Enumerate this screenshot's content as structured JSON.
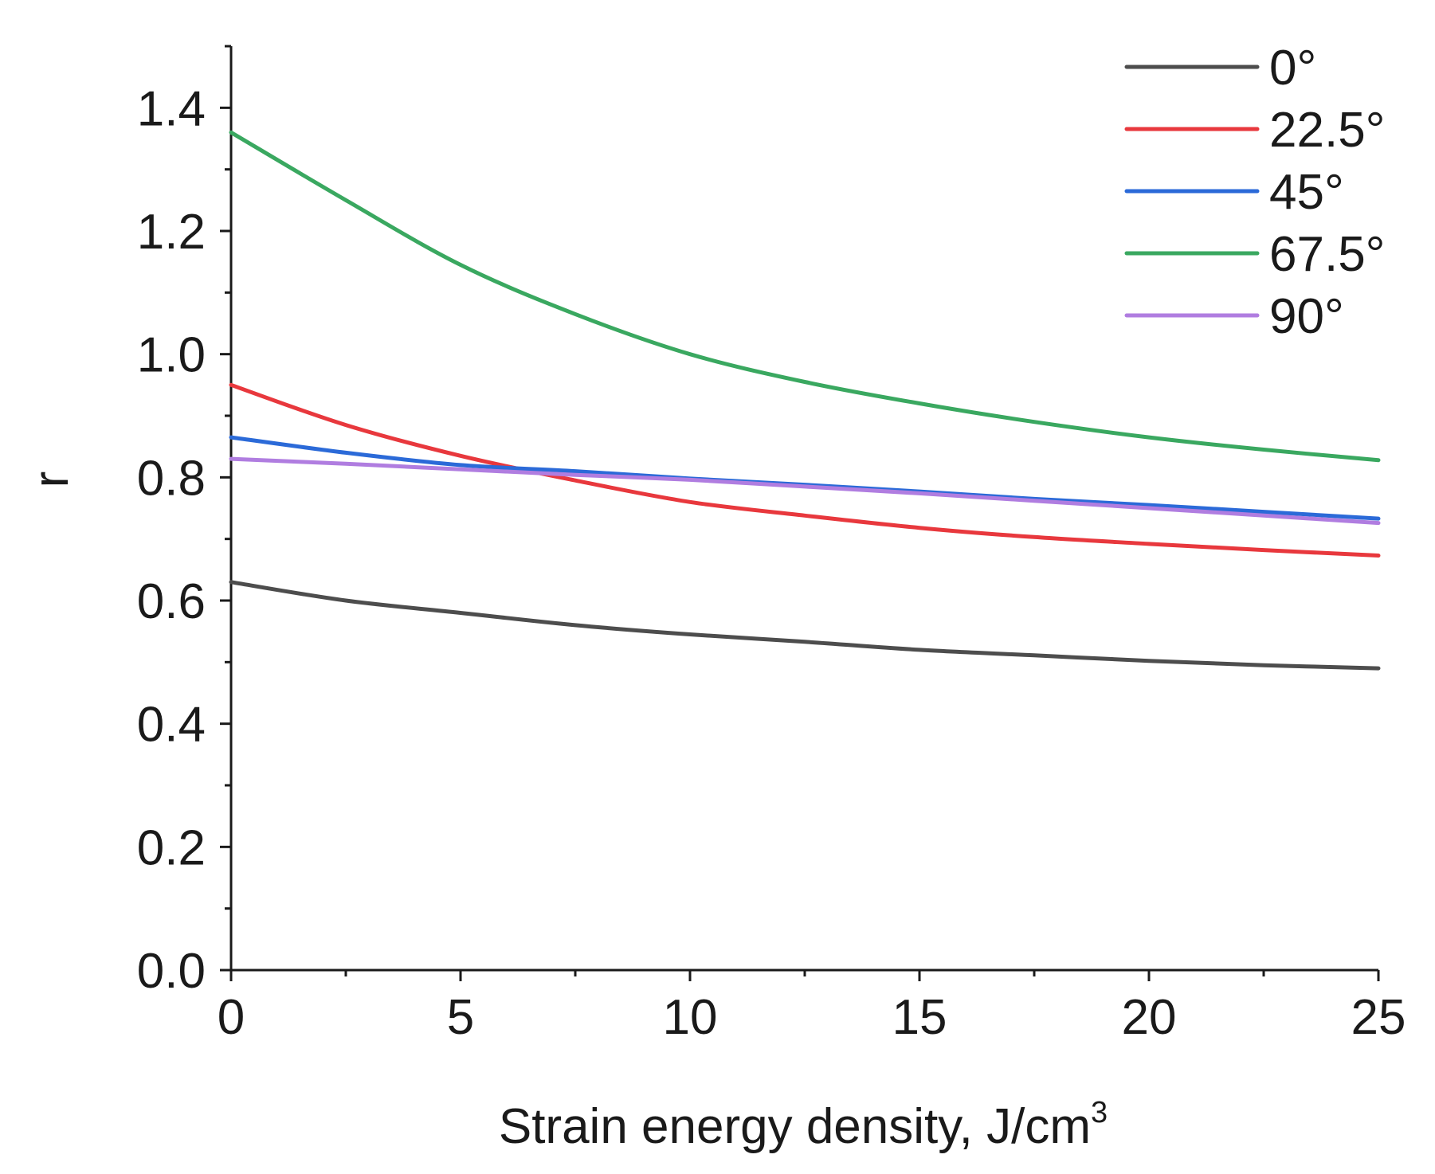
{
  "chart_data": {
    "type": "line",
    "title": "",
    "xlabel": "Strain energy density, J/cm",
    "xlabel_superscript": "3",
    "ylabel": "r",
    "xlim": [
      0,
      25
    ],
    "ylim": [
      0,
      1.5
    ],
    "x_ticks": [
      "0",
      "5",
      "10",
      "15",
      "20",
      "25"
    ],
    "y_ticks": [
      "0.0",
      "0.2",
      "0.4",
      "0.6",
      "0.8",
      "1.0",
      "1.2",
      "1.4"
    ],
    "legend_position": "top-right",
    "x": [
      0,
      2.5,
      5,
      7.5,
      10,
      12.5,
      15,
      17.5,
      20,
      22.5,
      25
    ],
    "series": [
      {
        "name": "0°",
        "color": "#4d4d4d",
        "values": [
          0.63,
          0.6,
          0.58,
          0.56,
          0.545,
          0.533,
          0.52,
          0.511,
          0.502,
          0.495,
          0.49
        ]
      },
      {
        "name": "22.5°",
        "color": "#e8383d",
        "values": [
          0.95,
          0.885,
          0.835,
          0.795,
          0.76,
          0.738,
          0.718,
          0.703,
          0.692,
          0.682,
          0.673
        ]
      },
      {
        "name": "45°",
        "color": "#2b6ad8",
        "values": [
          0.865,
          0.84,
          0.82,
          0.81,
          0.798,
          0.788,
          0.777,
          0.765,
          0.755,
          0.744,
          0.733
        ]
      },
      {
        "name": "67.5°",
        "color": "#3aa860",
        "values": [
          1.36,
          1.25,
          1.145,
          1.065,
          1.0,
          0.955,
          0.92,
          0.89,
          0.865,
          0.845,
          0.828
        ]
      },
      {
        "name": "90°",
        "color": "#b07de0",
        "values": [
          0.83,
          0.822,
          0.813,
          0.804,
          0.796,
          0.785,
          0.774,
          0.762,
          0.75,
          0.738,
          0.726
        ]
      }
    ]
  }
}
